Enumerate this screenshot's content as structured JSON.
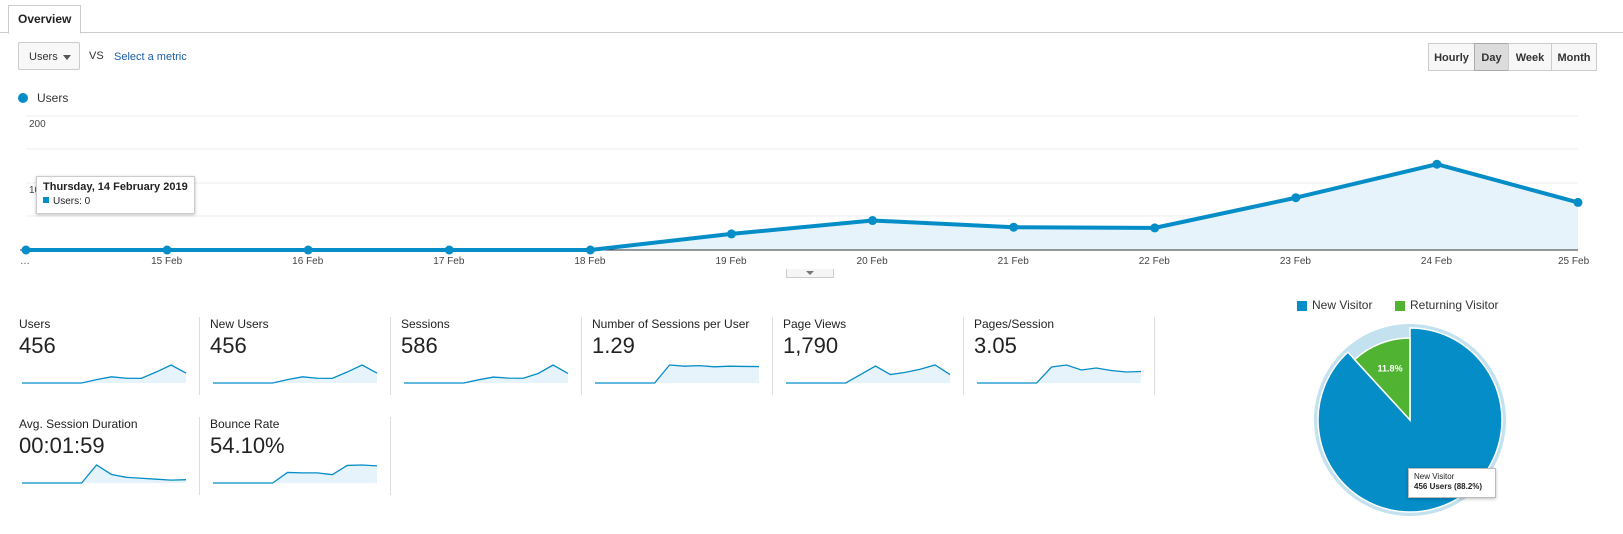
{
  "tabs": {
    "overview": "Overview"
  },
  "toolbar": {
    "metric": "Users",
    "vs": "VS",
    "select_metric": "Select a metric",
    "periods": [
      "Hourly",
      "Day",
      "Week",
      "Month"
    ],
    "active_period": "Day"
  },
  "chart_data": [
    {
      "type": "area",
      "series": [
        {
          "name": "Users",
          "values": [
            0,
            0,
            0,
            0,
            0,
            24,
            44,
            34,
            33,
            78,
            128,
            71
          ]
        }
      ],
      "categories": [
        "…",
        "15 Feb",
        "16 Feb",
        "17 Feb",
        "18 Feb",
        "19 Feb",
        "20 Feb",
        "21 Feb",
        "22 Feb",
        "23 Feb",
        "24 Feb",
        "25 Feb"
      ],
      "y_ticks": [
        "200",
        "100"
      ],
      "ylim": [
        0,
        200
      ],
      "legend": "top-left",
      "color": "#058dc7",
      "tooltip": {
        "title": "Thursday, 14 February 2019",
        "line": "Users: 0"
      }
    },
    {
      "type": "pie",
      "slices": [
        {
          "name": "New Visitor",
          "percent": 88.2,
          "color": "#058dc7"
        },
        {
          "name": "Returning Visitor",
          "percent": 11.8,
          "color": "#50b432"
        }
      ],
      "slice_labels": [
        "11.8%"
      ],
      "legend": "top",
      "tooltip": {
        "title": "New Visitor",
        "line": "456 Users (88.2%)"
      }
    }
  ],
  "metrics": [
    {
      "label": "Users",
      "value": "456",
      "spark": [
        0,
        0,
        0,
        0,
        0,
        24,
        44,
        34,
        33,
        78,
        128,
        71
      ]
    },
    {
      "label": "New Users",
      "value": "456",
      "spark": [
        0,
        0,
        0,
        0,
        0,
        24,
        44,
        34,
        33,
        78,
        128,
        71
      ]
    },
    {
      "label": "Sessions",
      "value": "586",
      "spark": [
        0,
        0,
        0,
        0,
        0,
        30,
        56,
        46,
        45,
        90,
        170,
        90
      ]
    },
    {
      "label": "Number of Sessions per User",
      "value": "1.29",
      "spark": [
        0,
        0,
        0,
        0,
        0,
        1.5,
        1.4,
        1.45,
        1.35,
        1.4,
        1.38,
        1.37
      ]
    },
    {
      "label": "Page Views",
      "value": "1,790",
      "spark": [
        0,
        0,
        0,
        0,
        0,
        80,
        160,
        80,
        100,
        130,
        170,
        80
      ]
    },
    {
      "label": "Pages/Session",
      "value": "3.05",
      "spark": [
        0,
        0,
        0,
        0,
        0,
        3.2,
        3.6,
        2.6,
        3.0,
        2.5,
        2.2,
        2.3
      ]
    },
    {
      "label": "Avg. Session Duration",
      "value": "00:01:59",
      "spark": [
        0,
        0,
        0,
        0,
        0,
        190,
        90,
        60,
        50,
        40,
        30,
        35
      ]
    },
    {
      "label": "Bounce Rate",
      "value": "54.10%",
      "spark": [
        0,
        0,
        0,
        0,
        0,
        48,
        46,
        46,
        38,
        80,
        82,
        78
      ]
    }
  ]
}
